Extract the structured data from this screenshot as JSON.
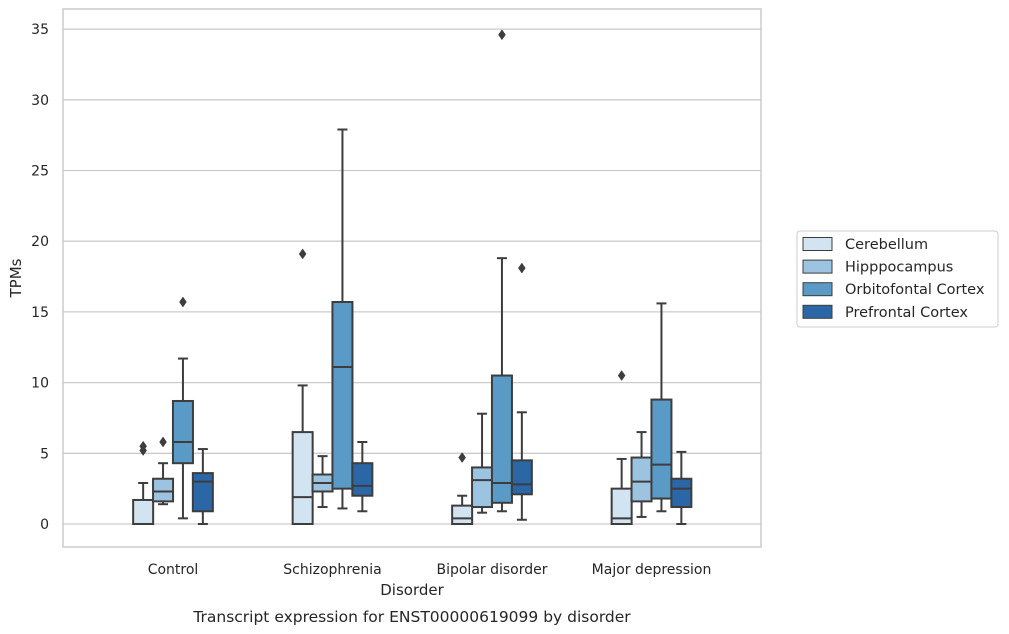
{
  "chart_data": {
    "type": "box",
    "title": "",
    "caption": "Transcript expression for ENST00000619099 by disorder",
    "xlabel": "Disorder",
    "ylabel": "TPMs",
    "ylim": [
      -1.7,
      36.6
    ],
    "yticks": [
      0,
      5,
      10,
      15,
      20,
      25,
      30,
      35
    ],
    "grid": "horizontal",
    "legend_position": "right",
    "categories": [
      "Control",
      "Schizophrenia",
      "Bipolar disorder",
      "Major depression"
    ],
    "series": [
      {
        "name": "Cerebellum",
        "color": "#d2e3f2",
        "boxes": [
          {
            "whisker_low": 0,
            "q1": 0,
            "median": 0,
            "q3": 1.7,
            "whisker_high": 2.9,
            "outliers": [
              5.2,
              5.5
            ]
          },
          {
            "whisker_low": 0,
            "q1": 0,
            "median": 1.9,
            "q3": 6.5,
            "whisker_high": 9.8,
            "outliers": [
              19.1
            ]
          },
          {
            "whisker_low": 0,
            "q1": 0,
            "median": 0.4,
            "q3": 1.3,
            "whisker_high": 2.0,
            "outliers": [
              4.7
            ]
          },
          {
            "whisker_low": 0,
            "q1": 0,
            "median": 0.4,
            "q3": 2.5,
            "whisker_high": 4.6,
            "outliers": [
              10.5
            ]
          }
        ]
      },
      {
        "name": "Hipppocampus",
        "color": "#9cc3df",
        "boxes": [
          {
            "whisker_low": 1.4,
            "q1": 1.6,
            "median": 2.3,
            "q3": 3.2,
            "whisker_high": 4.3,
            "outliers": [
              5.8
            ]
          },
          {
            "whisker_low": 1.2,
            "q1": 2.3,
            "median": 2.9,
            "q3": 3.5,
            "whisker_high": 4.8,
            "outliers": []
          },
          {
            "whisker_low": 0.8,
            "q1": 1.2,
            "median": 3.1,
            "q3": 4.0,
            "whisker_high": 7.8,
            "outliers": []
          },
          {
            "whisker_low": 0.5,
            "q1": 1.6,
            "median": 3.0,
            "q3": 4.7,
            "whisker_high": 6.5,
            "outliers": []
          }
        ]
      },
      {
        "name": "Orbitofontal Cortex",
        "color": "#5a9ac6",
        "boxes": [
          {
            "whisker_low": 0.4,
            "q1": 4.3,
            "median": 5.8,
            "q3": 8.7,
            "whisker_high": 11.7,
            "outliers": [
              15.7
            ]
          },
          {
            "whisker_low": 1.1,
            "q1": 2.5,
            "median": 11.1,
            "q3": 15.7,
            "whisker_high": 27.9,
            "outliers": []
          },
          {
            "whisker_low": 0.9,
            "q1": 1.5,
            "median": 2.9,
            "q3": 10.5,
            "whisker_high": 18.8,
            "outliers": [
              34.6
            ]
          },
          {
            "whisker_low": 0.9,
            "q1": 1.8,
            "median": 4.2,
            "q3": 8.8,
            "whisker_high": 15.6,
            "outliers": []
          }
        ]
      },
      {
        "name": "Prefrontal Cortex",
        "color": "#2b67a7",
        "boxes": [
          {
            "whisker_low": 0,
            "q1": 0.9,
            "median": 3.0,
            "q3": 3.6,
            "whisker_high": 5.3,
            "outliers": []
          },
          {
            "whisker_low": 0.9,
            "q1": 2.0,
            "median": 2.7,
            "q3": 4.3,
            "whisker_high": 5.8,
            "outliers": []
          },
          {
            "whisker_low": 0.3,
            "q1": 2.1,
            "median": 2.8,
            "q3": 4.5,
            "whisker_high": 7.9,
            "outliers": [
              18.1
            ]
          },
          {
            "whisker_low": 0,
            "q1": 1.2,
            "median": 2.5,
            "q3": 3.2,
            "whisker_high": 5.1,
            "outliers": []
          }
        ]
      }
    ]
  }
}
